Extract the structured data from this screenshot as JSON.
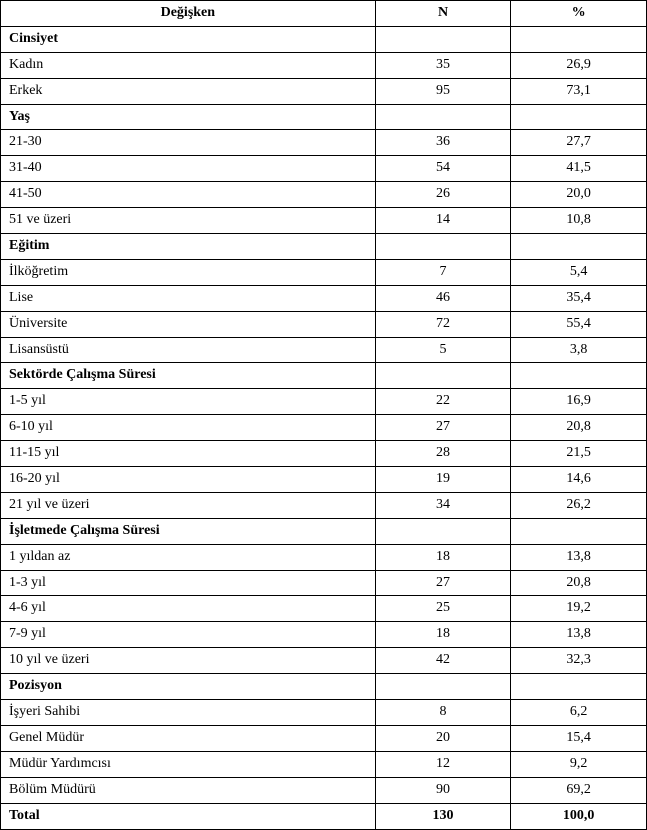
{
  "table": {
    "columns": {
      "variable": "Değişken",
      "n": "N",
      "pct": "%"
    },
    "col_widths_pct": [
      58,
      21,
      21
    ],
    "border_color": "#000000",
    "background_color": "#ffffff",
    "text_color": "#000000",
    "font_family": "Times New Roman",
    "header_fontsize": 14,
    "body_fontsize": 14,
    "sections": [
      {
        "title": "Cinsiyet",
        "rows": [
          {
            "label": "Kadın",
            "n": "35",
            "pct": "26,9"
          },
          {
            "label": "Erkek",
            "n": "95",
            "pct": "73,1"
          }
        ]
      },
      {
        "title": "Yaş",
        "rows": [
          {
            "label": "21-30",
            "n": "36",
            "pct": "27,7"
          },
          {
            "label": "31-40",
            "n": "54",
            "pct": "41,5"
          },
          {
            "label": "41-50",
            "n": "26",
            "pct": "20,0"
          },
          {
            "label": "51 ve üzeri",
            "n": "14",
            "pct": "10,8"
          }
        ]
      },
      {
        "title": "Eğitim",
        "rows": [
          {
            "label": "İlköğretim",
            "n": "7",
            "pct": "5,4"
          },
          {
            "label": "Lise",
            "n": "46",
            "pct": "35,4"
          },
          {
            "label": "Üniversite",
            "n": "72",
            "pct": "55,4"
          },
          {
            "label": "Lisansüstü",
            "n": "5",
            "pct": "3,8"
          }
        ]
      },
      {
        "title": "Sektörde Çalışma Süresi",
        "rows": [
          {
            "label": "1-5 yıl",
            "n": "22",
            "pct": "16,9"
          },
          {
            "label": "6-10 yıl",
            "n": "27",
            "pct": "20,8"
          },
          {
            "label": "11-15 yıl",
            "n": "28",
            "pct": "21,5"
          },
          {
            "label": "16-20 yıl",
            "n": "19",
            "pct": "14,6"
          },
          {
            "label": "21 yıl ve üzeri",
            "n": "34",
            "pct": "26,2"
          }
        ]
      },
      {
        "title": "İşletmede Çalışma Süresi",
        "rows": [
          {
            "label": "1 yıldan az",
            "n": "18",
            "pct": "13,8"
          },
          {
            "label": "1-3 yıl",
            "n": "27",
            "pct": "20,8"
          },
          {
            "label": "4-6 yıl",
            "n": "25",
            "pct": "19,2"
          },
          {
            "label": "7-9 yıl",
            "n": "18",
            "pct": "13,8"
          },
          {
            "label": "10 yıl ve üzeri",
            "n": "42",
            "pct": "32,3"
          }
        ]
      },
      {
        "title": "Pozisyon",
        "rows": [
          {
            "label": "İşyeri Sahibi",
            "n": "8",
            "pct": "6,2"
          },
          {
            "label": "Genel Müdür",
            "n": "20",
            "pct": "15,4"
          },
          {
            "label": "Müdür Yardımcısı",
            "n": "12",
            "pct": "9,2"
          },
          {
            "label": "Bölüm Müdürü",
            "n": "90",
            "pct": "69,2"
          }
        ]
      }
    ],
    "total": {
      "label": "Total",
      "n": "130",
      "pct": "100,0"
    }
  }
}
